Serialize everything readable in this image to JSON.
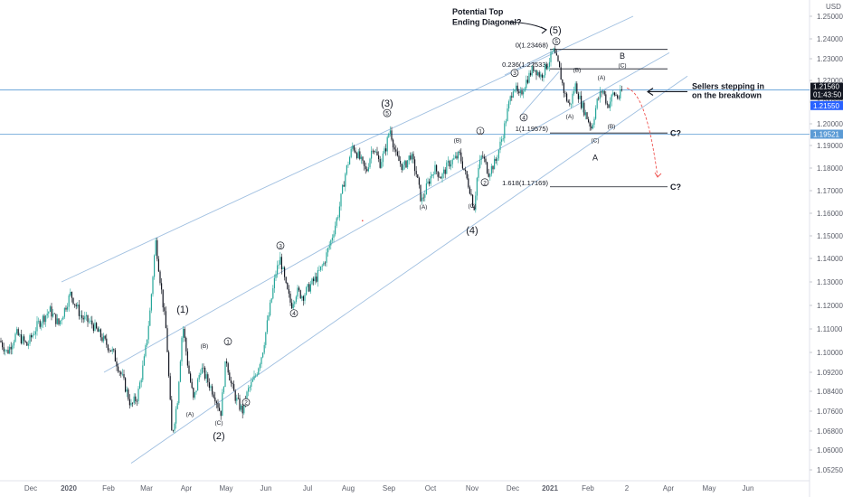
{
  "chart_data": {
    "type": "candlestick",
    "symbol_currency": "USD",
    "y_axis": {
      "min": 1.048,
      "max": 1.255,
      "ticks": [
        1.0525,
        1.06,
        1.068,
        1.076,
        1.084,
        1.092,
        1.1,
        1.11,
        1.12,
        1.13,
        1.14,
        1.15,
        1.16,
        1.17,
        1.18,
        1.19,
        1.2,
        1.21,
        1.22,
        1.23,
        1.24,
        1.25
      ],
      "tick_labels": [
        "1.05250",
        "1.06000",
        "1.06800",
        "1.07600",
        "1.08400",
        "1.09200",
        "1.10000",
        "1.11000",
        "1.12000",
        "1.13000",
        "1.14000",
        "1.15000",
        "1.16000",
        "1.17000",
        "1.18000",
        "1.19000",
        "1.20000",
        "1.21000",
        "1.22000",
        "1.23000",
        "1.24000",
        "1.25000"
      ]
    },
    "x_axis": {
      "domain": [
        0,
        930
      ],
      "labels": [
        {
          "pos": 34,
          "text": "Dec",
          "bold": false
        },
        {
          "pos": 76,
          "text": "2020",
          "bold": true
        },
        {
          "pos": 120,
          "text": "Feb",
          "bold": false
        },
        {
          "pos": 162,
          "text": "Mar",
          "bold": false
        },
        {
          "pos": 206,
          "text": "Apr",
          "bold": false
        },
        {
          "pos": 250,
          "text": "May",
          "bold": false
        },
        {
          "pos": 294,
          "text": "Jun",
          "bold": false
        },
        {
          "pos": 340,
          "text": "Jul",
          "bold": false
        },
        {
          "pos": 385,
          "text": "Aug",
          "bold": false
        },
        {
          "pos": 430,
          "text": "Sep",
          "bold": false
        },
        {
          "pos": 476,
          "text": "Oct",
          "bold": false
        },
        {
          "pos": 522,
          "text": "Nov",
          "bold": false
        },
        {
          "pos": 567,
          "text": "Dec",
          "bold": false
        },
        {
          "pos": 608,
          "text": "2021",
          "bold": true
        },
        {
          "pos": 650,
          "text": "Feb",
          "bold": false
        },
        {
          "pos": 693,
          "text": "2",
          "bold": false
        },
        {
          "pos": 739,
          "text": "Apr",
          "bold": false
        },
        {
          "pos": 784,
          "text": "May",
          "bold": false
        },
        {
          "pos": 827,
          "text": "Jun",
          "bold": false
        }
      ]
    },
    "price_path": [
      [
        0,
        1.105
      ],
      [
        8,
        1.1
      ],
      [
        18,
        1.108
      ],
      [
        30,
        1.103
      ],
      [
        42,
        1.112
      ],
      [
        55,
        1.118
      ],
      [
        65,
        1.112
      ],
      [
        78,
        1.125
      ],
      [
        90,
        1.115
      ],
      [
        102,
        1.112
      ],
      [
        115,
        1.105
      ],
      [
        125,
        1.1
      ],
      [
        135,
        1.09
      ],
      [
        145,
        1.078
      ],
      [
        152,
        1.082
      ],
      [
        160,
        1.098
      ],
      [
        166,
        1.118
      ],
      [
        172,
        1.148
      ],
      [
        178,
        1.128
      ],
      [
        184,
        1.108
      ],
      [
        190,
        1.066
      ],
      [
        196,
        1.08
      ],
      [
        202,
        1.112
      ],
      [
        208,
        1.094
      ],
      [
        214,
        1.08
      ],
      [
        222,
        1.094
      ],
      [
        230,
        1.088
      ],
      [
        238,
        1.082
      ],
      [
        244,
        1.075
      ],
      [
        250,
        1.098
      ],
      [
        256,
        1.086
      ],
      [
        262,
        1.08
      ],
      [
        268,
        1.076
      ],
      [
        274,
        1.084
      ],
      [
        282,
        1.09
      ],
      [
        290,
        1.1
      ],
      [
        298,
        1.118
      ],
      [
        305,
        1.134
      ],
      [
        310,
        1.14
      ],
      [
        316,
        1.128
      ],
      [
        322,
        1.12
      ],
      [
        328,
        1.126
      ],
      [
        335,
        1.124
      ],
      [
        342,
        1.128
      ],
      [
        350,
        1.132
      ],
      [
        358,
        1.138
      ],
      [
        366,
        1.148
      ],
      [
        374,
        1.16
      ],
      [
        382,
        1.178
      ],
      [
        390,
        1.19
      ],
      [
        398,
        1.184
      ],
      [
        405,
        1.178
      ],
      [
        412,
        1.19
      ],
      [
        420,
        1.182
      ],
      [
        426,
        1.188
      ],
      [
        431,
        1.198
      ],
      [
        438,
        1.185
      ],
      [
        446,
        1.18
      ],
      [
        454,
        1.186
      ],
      [
        460,
        1.178
      ],
      [
        466,
        1.165
      ],
      [
        472,
        1.172
      ],
      [
        480,
        1.18
      ],
      [
        488,
        1.176
      ],
      [
        496,
        1.182
      ],
      [
        503,
        1.184
      ],
      [
        508,
        1.186
      ],
      [
        514,
        1.178
      ],
      [
        520,
        1.17
      ],
      [
        524,
        1.162
      ],
      [
        528,
        1.178
      ],
      [
        533,
        1.186
      ],
      [
        540,
        1.178
      ],
      [
        548,
        1.183
      ],
      [
        556,
        1.195
      ],
      [
        562,
        1.208
      ],
      [
        568,
        1.218
      ],
      [
        574,
        1.212
      ],
      [
        582,
        1.22
      ],
      [
        590,
        1.226
      ],
      [
        598,
        1.222
      ],
      [
        606,
        1.228
      ],
      [
        612,
        1.234
      ],
      [
        618,
        1.226
      ],
      [
        624,
        1.214
      ],
      [
        630,
        1.208
      ],
      [
        636,
        1.218
      ],
      [
        642,
        1.21
      ],
      [
        648,
        1.204
      ],
      [
        654,
        1.198
      ],
      [
        660,
        1.21
      ],
      [
        666,
        1.216
      ],
      [
        672,
        1.208
      ],
      [
        678,
        1.214
      ],
      [
        684,
        1.212
      ],
      [
        688,
        1.2156
      ]
    ],
    "current_price": {
      "value": 1.2156,
      "label": "1.21560",
      "countdown": "01:43:50"
    },
    "price_line_2": {
      "value": 1.2155,
      "label": "1.21550"
    },
    "horizontal_line": {
      "value": 1.19521,
      "label": "1.19521"
    },
    "fib_levels": [
      {
        "label": "0(1.23468)",
        "value": 1.23468,
        "x1": 608,
        "x2": 738
      },
      {
        "label": "0.236(1.22533)",
        "value": 1.22533,
        "x1": 608,
        "x2": 738
      },
      {
        "label": "1(1.19575)",
        "value": 1.19575,
        "x1": 608,
        "x2": 738
      },
      {
        "label": "1.618(1.17169)",
        "value": 1.17169,
        "x1": 608,
        "x2": 738
      }
    ],
    "channel_lines": [
      {
        "p1": [
          68,
          1.13
        ],
        "p2": [
          700,
          1.25
        ]
      },
      {
        "p1": [
          115,
          1.092
        ],
        "p2": [
          740,
          1.233
        ]
      },
      {
        "p1": [
          145,
          1.055
        ],
        "p2": [
          760,
          1.222
        ]
      },
      {
        "p1": [
          558,
          1.2225
        ],
        "p2": [
          612,
          1.234
        ]
      },
      {
        "p1": [
          575,
          1.2035
        ],
        "p2": [
          618,
          1.224
        ]
      }
    ],
    "wave_labels": [
      {
        "text": "(1)",
        "x": 202,
        "y": 1.117,
        "style": "paren"
      },
      {
        "text": "(2)",
        "x": 242,
        "y": 1.0645,
        "style": "paren"
      },
      {
        "text": "(3)",
        "x": 428,
        "y": 1.208,
        "style": "paren"
      },
      {
        "text": "(4)",
        "x": 522,
        "y": 1.151,
        "style": "paren"
      },
      {
        "text": "(5)",
        "x": 614,
        "y": 1.2425,
        "style": "paren"
      },
      {
        "text": "A",
        "x": 658,
        "y": 1.1835,
        "style": "letter"
      },
      {
        "text": "B",
        "x": 688,
        "y": 1.23,
        "style": "letter"
      },
      {
        "text": "1",
        "x": 252,
        "y": 1.1035,
        "style": "circle"
      },
      {
        "text": "2",
        "x": 272,
        "y": 1.0785,
        "style": "circle"
      },
      {
        "text": "3",
        "x": 310,
        "y": 1.1445,
        "style": "circle"
      },
      {
        "text": "4",
        "x": 325,
        "y": 1.1155,
        "style": "circle"
      },
      {
        "text": "5",
        "x": 428,
        "y": 1.2037,
        "style": "circle"
      },
      {
        "text": "1",
        "x": 531,
        "y": 1.1955,
        "style": "circle"
      },
      {
        "text": "2",
        "x": 536,
        "y": 1.1725,
        "style": "circle"
      },
      {
        "text": "3",
        "x": 569,
        "y": 1.2222,
        "style": "circle"
      },
      {
        "text": "4",
        "x": 579,
        "y": 1.2017,
        "style": "circle"
      },
      {
        "text": "5",
        "x": 615,
        "y": 1.2374,
        "style": "circle"
      },
      {
        "text": "(B)",
        "x": 226,
        "y": 1.102,
        "style": "small"
      },
      {
        "text": "(A)",
        "x": 210,
        "y": 1.074,
        "style": "small"
      },
      {
        "text": "(C)",
        "x": 242,
        "y": 1.0705,
        "style": "small"
      },
      {
        "text": "(B)",
        "x": 506,
        "y": 1.1915,
        "style": "small"
      },
      {
        "text": "(A)",
        "x": 468,
        "y": 1.162,
        "style": "small"
      },
      {
        "text": "(C)",
        "x": 522,
        "y": 1.1625,
        "style": "small"
      },
      {
        "text": "(B)",
        "x": 638,
        "y": 1.224,
        "style": "small"
      },
      {
        "text": "(A)",
        "x": 630,
        "y": 1.2025,
        "style": "small"
      },
      {
        "text": "(A)",
        "x": 665,
        "y": 1.2205,
        "style": "small"
      },
      {
        "text": "(C)",
        "x": 658,
        "y": 1.1915,
        "style": "small"
      },
      {
        "text": "(B)",
        "x": 676,
        "y": 1.198,
        "style": "small"
      },
      {
        "text": "(C)",
        "x": 688,
        "y": 1.226,
        "style": "small"
      }
    ],
    "annotations": [
      {
        "text": "Potential Top",
        "x": 500,
        "y": 1.2505
      },
      {
        "text": "Ending Diagonal?",
        "x": 500,
        "y": 1.2462
      },
      {
        "text": "Sellers stepping in",
        "x": 765,
        "y": 1.216
      },
      {
        "text": "on the breakdown",
        "x": 765,
        "y": 1.2118
      },
      {
        "text": "C?",
        "x": 741,
        "y": 1.1944
      },
      {
        "text": "C?",
        "x": 741,
        "y": 1.1705
      }
    ]
  }
}
